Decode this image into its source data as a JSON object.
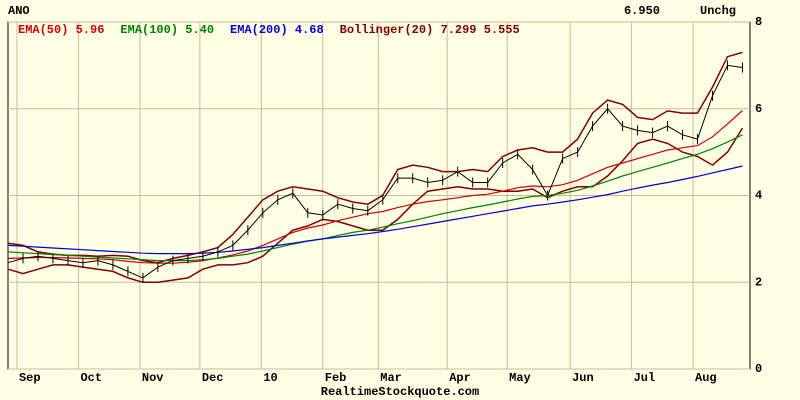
{
  "chart_data": {
    "type": "line",
    "symbol": "ANO",
    "last": "6.950",
    "change": "Unchg",
    "source": "RealtimeStockquote.com",
    "x": [
      0,
      1,
      2,
      3,
      4,
      5,
      6,
      7,
      8,
      9,
      10,
      11,
      12,
      13,
      14,
      15,
      16,
      17,
      18,
      19,
      20,
      21,
      22,
      23,
      24,
      25,
      26,
      27,
      28,
      29,
      30,
      31,
      32,
      33,
      34,
      35,
      36,
      37,
      38,
      39,
      40,
      41,
      42,
      43,
      44,
      45,
      46,
      47,
      48,
      49
    ],
    "xlim": [
      0,
      49.5
    ],
    "xticks": [
      {
        "value": 0.6,
        "label": "Sep"
      },
      {
        "value": 4.7,
        "label": "Oct"
      },
      {
        "value": 8.8,
        "label": "Nov"
      },
      {
        "value": 12.8,
        "label": "Dec"
      },
      {
        "value": 16.9,
        "label": "10"
      },
      {
        "value": 21,
        "label": "Feb"
      },
      {
        "value": 24.7,
        "label": "Mar"
      },
      {
        "value": 29.3,
        "label": "Apr"
      },
      {
        "value": 33.3,
        "label": "May"
      },
      {
        "value": 37.5,
        "label": "Jun"
      },
      {
        "value": 41.6,
        "label": "Jul"
      },
      {
        "value": 45.7,
        "label": "Aug"
      }
    ],
    "ylim": [
      0,
      8
    ],
    "yticks": [
      0,
      2,
      4,
      6,
      8
    ],
    "grid": true,
    "price": {
      "color": "#000000",
      "values": [
        2.45,
        2.55,
        2.6,
        2.55,
        2.5,
        2.45,
        2.5,
        2.4,
        2.25,
        2.1,
        2.35,
        2.5,
        2.55,
        2.6,
        2.7,
        2.85,
        3.2,
        3.6,
        3.9,
        4.05,
        3.6,
        3.55,
        3.8,
        3.7,
        3.65,
        3.9,
        4.4,
        4.4,
        4.3,
        4.35,
        4.55,
        4.3,
        4.3,
        4.75,
        4.95,
        4.6,
        4.0,
        4.85,
        5.0,
        5.6,
        6.0,
        5.6,
        5.5,
        5.45,
        5.6,
        5.4,
        5.3,
        6.3,
        7.0,
        6.95
      ]
    },
    "series": [
      {
        "name": "EMA(50) 5.96",
        "color": "#cc0000",
        "values": [
          2.55,
          2.56,
          2.57,
          2.57,
          2.56,
          2.55,
          2.54,
          2.52,
          2.48,
          2.45,
          2.44,
          2.44,
          2.46,
          2.5,
          2.56,
          2.63,
          2.72,
          2.85,
          3.0,
          3.15,
          3.25,
          3.32,
          3.42,
          3.5,
          3.58,
          3.63,
          3.72,
          3.8,
          3.86,
          3.9,
          3.95,
          4.0,
          4.03,
          4.1,
          4.18,
          4.22,
          4.2,
          4.25,
          4.35,
          4.5,
          4.65,
          4.75,
          4.85,
          4.95,
          5.05,
          5.1,
          5.15,
          5.35,
          5.65,
          5.96
        ]
      },
      {
        "name": "EMA(100) 5.40",
        "color": "#008000",
        "values": [
          2.7,
          2.68,
          2.66,
          2.64,
          2.62,
          2.6,
          2.58,
          2.56,
          2.54,
          2.52,
          2.5,
          2.5,
          2.5,
          2.52,
          2.55,
          2.6,
          2.65,
          2.72,
          2.8,
          2.88,
          2.95,
          3.0,
          3.08,
          3.15,
          3.2,
          3.27,
          3.35,
          3.42,
          3.5,
          3.58,
          3.65,
          3.72,
          3.78,
          3.85,
          3.92,
          3.98,
          4.0,
          4.05,
          4.12,
          4.22,
          4.33,
          4.45,
          4.55,
          4.65,
          4.75,
          4.85,
          4.95,
          5.08,
          5.23,
          5.4
        ]
      },
      {
        "name": "EMA(200) 4.68",
        "color": "#0000cc",
        "values": [
          2.85,
          2.83,
          2.81,
          2.79,
          2.77,
          2.75,
          2.73,
          2.71,
          2.69,
          2.67,
          2.66,
          2.66,
          2.66,
          2.67,
          2.69,
          2.72,
          2.76,
          2.8,
          2.85,
          2.9,
          2.95,
          3.0,
          3.04,
          3.08,
          3.12,
          3.17,
          3.22,
          3.28,
          3.34,
          3.4,
          3.46,
          3.52,
          3.58,
          3.64,
          3.7,
          3.76,
          3.8,
          3.85,
          3.9,
          3.96,
          4.02,
          4.1,
          4.17,
          4.24,
          4.3,
          4.37,
          4.44,
          4.52,
          4.6,
          4.68
        ]
      }
    ],
    "bands": {
      "name": "Bollinger(20) 7.299 5.555",
      "color": "#800000",
      "upper": [
        2.9,
        2.85,
        2.7,
        2.65,
        2.62,
        2.62,
        2.6,
        2.62,
        2.6,
        2.5,
        2.45,
        2.55,
        2.62,
        2.7,
        2.8,
        3.1,
        3.5,
        3.9,
        4.1,
        4.2,
        4.15,
        4.1,
        3.95,
        3.85,
        3.8,
        4.0,
        4.6,
        4.7,
        4.65,
        4.55,
        4.55,
        4.6,
        4.55,
        4.9,
        5.05,
        5.1,
        5.0,
        5.0,
        5.3,
        5.9,
        6.2,
        6.1,
        5.8,
        5.75,
        5.95,
        5.9,
        5.9,
        6.5,
        7.2,
        7.299
      ],
      "lower": [
        2.3,
        2.2,
        2.3,
        2.4,
        2.4,
        2.35,
        2.3,
        2.25,
        2.1,
        2.0,
        2.0,
        2.05,
        2.1,
        2.3,
        2.4,
        2.4,
        2.45,
        2.6,
        2.9,
        3.2,
        3.3,
        3.45,
        3.4,
        3.3,
        3.2,
        3.2,
        3.45,
        3.8,
        4.1,
        4.15,
        4.2,
        4.15,
        4.15,
        4.1,
        4.1,
        4.15,
        3.95,
        4.1,
        4.2,
        4.2,
        4.45,
        4.8,
        5.2,
        5.3,
        5.2,
        5.0,
        4.9,
        4.7,
        5.0,
        5.555
      ]
    }
  }
}
